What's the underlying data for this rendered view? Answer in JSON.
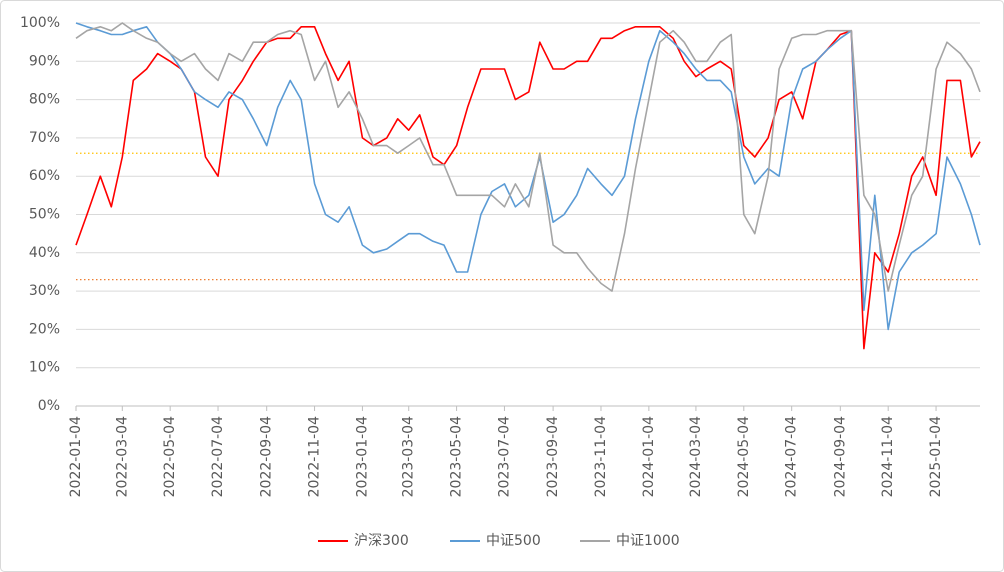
{
  "chart_data": {
    "type": "line",
    "x": [
      "2022-01-04",
      "2022-01-18",
      "2022-02-04",
      "2022-02-18",
      "2022-03-04",
      "2022-03-18",
      "2022-04-04",
      "2022-04-18",
      "2022-05-04",
      "2022-05-18",
      "2022-06-04",
      "2022-06-18",
      "2022-07-04",
      "2022-07-18",
      "2022-08-04",
      "2022-08-18",
      "2022-09-04",
      "2022-09-18",
      "2022-10-04",
      "2022-10-18",
      "2022-11-04",
      "2022-11-18",
      "2022-12-04",
      "2022-12-18",
      "2023-01-04",
      "2023-01-18",
      "2023-02-04",
      "2023-02-18",
      "2023-03-04",
      "2023-03-18",
      "2023-04-04",
      "2023-04-18",
      "2023-05-04",
      "2023-05-18",
      "2023-06-04",
      "2023-06-18",
      "2023-07-04",
      "2023-07-18",
      "2023-08-04",
      "2023-08-18",
      "2023-09-04",
      "2023-09-18",
      "2023-10-04",
      "2023-10-18",
      "2023-11-04",
      "2023-11-18",
      "2023-12-04",
      "2023-12-18",
      "2024-01-04",
      "2024-01-18",
      "2024-02-04",
      "2024-02-18",
      "2024-03-04",
      "2024-03-18",
      "2024-04-04",
      "2024-04-18",
      "2024-05-04",
      "2024-05-18",
      "2024-06-04",
      "2024-06-18",
      "2024-07-04",
      "2024-07-18",
      "2024-08-04",
      "2024-08-18",
      "2024-09-04",
      "2024-09-18",
      "2024-10-04",
      "2024-10-18",
      "2024-11-04",
      "2024-11-18",
      "2024-12-04",
      "2024-12-18",
      "2025-01-04",
      "2025-01-18",
      "2025-02-04",
      "2025-02-18",
      "2025-03-01"
    ],
    "series": [
      {
        "name": "沪深300",
        "color": "#ff0000",
        "values": [
          42,
          50,
          60,
          52,
          65,
          85,
          88,
          92,
          90,
          88,
          82,
          65,
          60,
          80,
          85,
          90,
          95,
          96,
          96,
          99,
          99,
          92,
          85,
          90,
          70,
          68,
          70,
          75,
          72,
          76,
          65,
          63,
          68,
          78,
          88,
          88,
          88,
          80,
          82,
          95,
          88,
          88,
          90,
          90,
          96,
          96,
          98,
          99,
          99,
          99,
          96,
          90,
          86,
          88,
          90,
          88,
          68,
          65,
          70,
          80,
          82,
          75,
          90,
          93,
          97,
          98,
          15,
          40,
          35,
          45,
          60,
          65,
          55,
          85,
          85,
          65,
          69
        ]
      },
      {
        "name": "中证500",
        "color": "#5b9bd5",
        "values": [
          100,
          99,
          98,
          97,
          97,
          98,
          99,
          95,
          92,
          88,
          82,
          80,
          78,
          82,
          80,
          75,
          68,
          78,
          85,
          80,
          58,
          50,
          48,
          52,
          42,
          40,
          41,
          43,
          45,
          45,
          43,
          42,
          35,
          35,
          50,
          56,
          58,
          52,
          55,
          65,
          48,
          50,
          55,
          62,
          58,
          55,
          60,
          75,
          90,
          98,
          95,
          92,
          88,
          85,
          85,
          82,
          65,
          58,
          62,
          60,
          80,
          88,
          90,
          93,
          96,
          98,
          25,
          55,
          20,
          35,
          40,
          42,
          45,
          65,
          58,
          50,
          42
        ]
      },
      {
        "name": "中证1000",
        "color": "#a5a5a5",
        "values": [
          96,
          98,
          99,
          98,
          100,
          98,
          96,
          95,
          92,
          90,
          92,
          88,
          85,
          92,
          90,
          95,
          95,
          97,
          98,
          97,
          85,
          90,
          78,
          82,
          75,
          68,
          68,
          66,
          68,
          70,
          63,
          63,
          55,
          55,
          55,
          55,
          52,
          58,
          52,
          66,
          42,
          40,
          40,
          36,
          32,
          30,
          45,
          62,
          80,
          95,
          98,
          95,
          90,
          90,
          95,
          97,
          50,
          45,
          60,
          88,
          96,
          97,
          97,
          98,
          98,
          98,
          55,
          50,
          30,
          42,
          55,
          60,
          88,
          95,
          92,
          88,
          82
        ]
      }
    ],
    "xlim": [
      "2022-01-04",
      "2025-03-01"
    ],
    "xticks": [
      "2022-01-04",
      "2022-03-04",
      "2022-05-04",
      "2022-07-04",
      "2022-09-04",
      "2022-11-04",
      "2023-01-04",
      "2023-03-04",
      "2023-05-04",
      "2023-07-04",
      "2023-09-04",
      "2023-11-04",
      "2024-01-04",
      "2024-03-04",
      "2024-05-04",
      "2024-07-04",
      "2024-09-04",
      "2024-11-04",
      "2025-01-04"
    ],
    "ylim": [
      0,
      100
    ],
    "yticks": [
      {
        "value": 0,
        "label": "0%"
      },
      {
        "value": 10,
        "label": "10%"
      },
      {
        "value": 20,
        "label": "20%"
      },
      {
        "value": 30,
        "label": "30%"
      },
      {
        "value": 40,
        "label": "40%"
      },
      {
        "value": 50,
        "label": "50%"
      },
      {
        "value": 60,
        "label": "60%"
      },
      {
        "value": 70,
        "label": "70%"
      },
      {
        "value": 80,
        "label": "80%"
      },
      {
        "value": 90,
        "label": "90%"
      },
      {
        "value": 100,
        "label": "100%"
      }
    ],
    "reference_lines": [
      {
        "value": 66,
        "color": "#ffc000"
      },
      {
        "value": 33,
        "color": "#ed7d31"
      }
    ],
    "grid": true,
    "legend": "bottom"
  }
}
